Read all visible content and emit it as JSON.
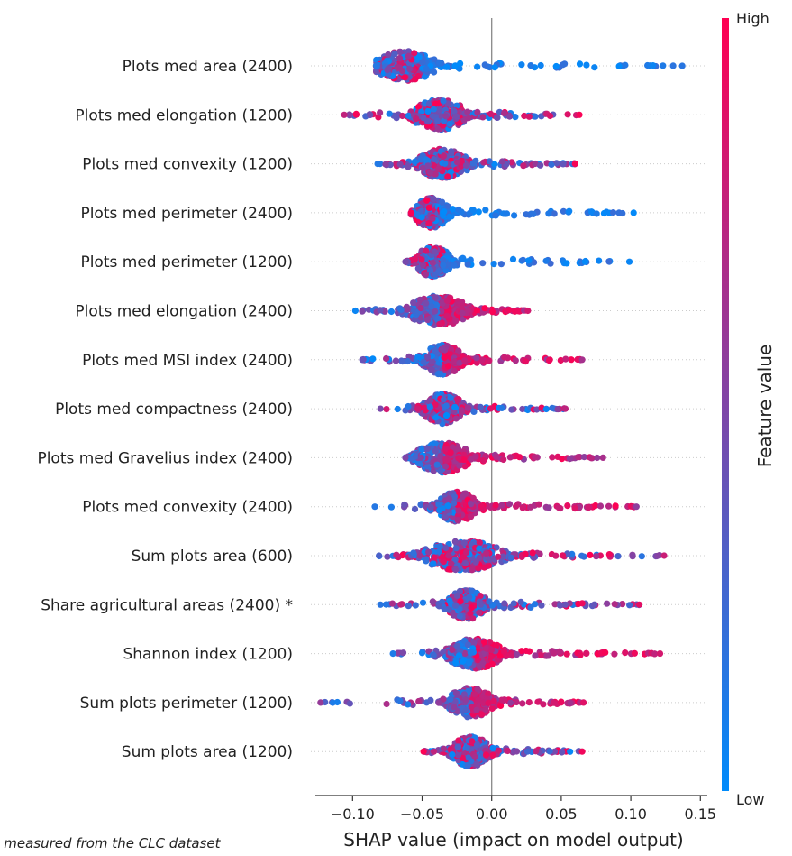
{
  "chart_data": {
    "type": "scatter",
    "subtype": "shap-beeswarm",
    "title": "",
    "xlabel": "SHAP value (impact on model output)",
    "ylabel": "",
    "xlim": [
      -0.13,
      0.155
    ],
    "xticks": [
      -0.1,
      -0.05,
      0.0,
      0.05,
      0.1,
      0.15
    ],
    "xtick_labels": [
      "−0.10",
      "−0.05",
      "0.00",
      "0.05",
      "0.10",
      "0.15"
    ],
    "zero_line": 0.0,
    "colorbar": {
      "label": "Feature value",
      "high": "High",
      "low": "Low",
      "colors": [
        "#008bfb",
        "#ff0052"
      ]
    },
    "features": [
      {
        "name": "Plots med area (2400)",
        "min": -0.083,
        "max": 0.137,
        "center": -0.062,
        "spread": 0.012,
        "tail_color": "low",
        "density": [
          0.35,
          0.3,
          0.15,
          0.1,
          0.1
        ]
      },
      {
        "name": "Plots med elongation (1200)",
        "min": -0.106,
        "max": 0.063,
        "center": -0.038,
        "spread": 0.011,
        "tail_color": "mixed",
        "density": [
          0.15,
          0.55,
          0.2,
          0.07,
          0.03
        ]
      },
      {
        "name": "Plots med convexity (1200)",
        "min": -0.082,
        "max": 0.06,
        "center": -0.035,
        "spread": 0.01,
        "tail_color": "mixed",
        "density": [
          0.3,
          0.45,
          0.15,
          0.07,
          0.03
        ]
      },
      {
        "name": "Plots med perimeter (2400)",
        "min": -0.058,
        "max": 0.102,
        "center": -0.043,
        "spread": 0.007,
        "tail_color": "low",
        "density": [
          0.2,
          0.45,
          0.2,
          0.1,
          0.05
        ]
      },
      {
        "name": "Plots med perimeter (1200)",
        "min": -0.062,
        "max": 0.099,
        "center": -0.042,
        "spread": 0.007,
        "tail_color": "low",
        "density": [
          0.2,
          0.45,
          0.2,
          0.1,
          0.05
        ]
      },
      {
        "name": "Plots med elongation (2400)",
        "min": -0.098,
        "max": 0.026,
        "center": -0.038,
        "spread": 0.012,
        "tail_color": "high",
        "density": [
          0.3,
          0.45,
          0.2,
          0.05,
          0.0
        ]
      },
      {
        "name": "Plots med MSI index (2400)",
        "min": -0.093,
        "max": 0.065,
        "center": -0.035,
        "spread": 0.008,
        "tail_color": "high",
        "density": [
          0.2,
          0.45,
          0.2,
          0.1,
          0.05
        ]
      },
      {
        "name": "Plots med compactness (2400)",
        "min": -0.08,
        "max": 0.053,
        "center": -0.035,
        "spread": 0.008,
        "tail_color": "mixed",
        "density": [
          0.2,
          0.45,
          0.2,
          0.1,
          0.05
        ]
      },
      {
        "name": "Plots med Gravelius index (2400)",
        "min": -0.062,
        "max": 0.08,
        "center": -0.035,
        "spread": 0.011,
        "tail_color": "high",
        "density": [
          0.2,
          0.45,
          0.2,
          0.1,
          0.05
        ]
      },
      {
        "name": "Plots med convexity (2400)",
        "min": -0.084,
        "max": 0.104,
        "center": -0.025,
        "spread": 0.008,
        "tail_color": "high",
        "density": [
          0.3,
          0.4,
          0.2,
          0.08,
          0.02
        ]
      },
      {
        "name": "Sum plots area (600)",
        "min": -0.081,
        "max": 0.124,
        "center": -0.02,
        "spread": 0.016,
        "tail_color": "mixed",
        "density": [
          0.35,
          0.35,
          0.2,
          0.08,
          0.02
        ]
      },
      {
        "name": "Share agricultural areas (2400) *",
        "min": -0.08,
        "max": 0.106,
        "center": -0.018,
        "spread": 0.008,
        "tail_color": "mixed",
        "density": [
          0.25,
          0.45,
          0.2,
          0.08,
          0.02
        ]
      },
      {
        "name": "Shannon index (1200)",
        "min": -0.071,
        "max": 0.121,
        "center": -0.012,
        "spread": 0.011,
        "tail_color": "high",
        "density": [
          0.25,
          0.4,
          0.25,
          0.08,
          0.02
        ]
      },
      {
        "name": "Sum plots perimeter (1200)",
        "min": -0.123,
        "max": 0.066,
        "center": -0.015,
        "spread": 0.009,
        "tail_color": "high",
        "density": [
          0.4,
          0.4,
          0.15,
          0.05,
          0.0
        ]
      },
      {
        "name": "Sum plots area (1200)",
        "min": -0.049,
        "max": 0.065,
        "center": -0.015,
        "spread": 0.008,
        "tail_color": "mixed",
        "density": [
          0.2,
          0.45,
          0.25,
          0.1,
          0.0
        ]
      }
    ],
    "footnote": "* measured from the CLC dataset"
  }
}
